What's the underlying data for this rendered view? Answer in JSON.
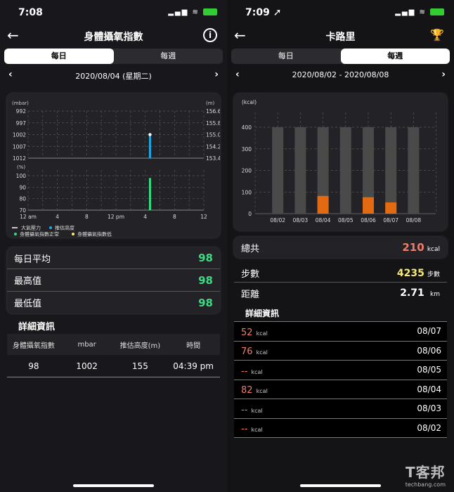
{
  "left": {
    "status_time": "7:08",
    "title": "身體攝氧指數",
    "tabs": [
      {
        "label": "每日",
        "active": true
      },
      {
        "label": "每週",
        "active": false
      }
    ],
    "date": "2020/08/04 (星期二)",
    "chart": {
      "pressure_unit": "(mbar)",
      "altitude_unit": "(m)",
      "spo2_unit": "(%)",
      "pressure_ticks": [
        "992",
        "997",
        "1002",
        "1007",
        "1012"
      ],
      "altitude_ticks": [
        "156.6",
        "155.8",
        "155.0",
        "154.2",
        "153.4"
      ],
      "spo2_ticks": [
        "100",
        "90",
        "80",
        "70"
      ],
      "x_ticks": [
        "12 am",
        "4",
        "8",
        "12 pm",
        "4",
        "8",
        "12"
      ],
      "legend": [
        "大氣壓力",
        "推估高度",
        "身體攝氧指數正常",
        "身體攝氧指數低"
      ],
      "colors": {
        "pressure": "#ffffff",
        "altitude": "#1ea7e8",
        "spo2_normal": "#2ee07f",
        "spo2_low": "#f3ef6b"
      },
      "points": [
        {
          "time_hours": 16.65,
          "pressure": 1002,
          "altitude": 155,
          "spo2": 98
        }
      ]
    },
    "stats": [
      {
        "label": "每日平均",
        "value": "98"
      },
      {
        "label": "最高值",
        "value": "98"
      },
      {
        "label": "最低值",
        "value": "98"
      }
    ],
    "detail_title": "詳細資訊",
    "table": {
      "headers": [
        "身體攝氧指數",
        "mbar",
        "推估高度(m)",
        "時間"
      ],
      "rows": [
        [
          "98",
          "1002",
          "155",
          "04:39 pm"
        ]
      ]
    }
  },
  "right": {
    "status_time": "7:09",
    "title": "卡路里",
    "tabs": [
      {
        "label": "每日",
        "active": false
      },
      {
        "label": "每週",
        "active": true
      }
    ],
    "date": "2020/08/02 - 2020/08/08",
    "chart_data": {
      "type": "bar",
      "ylabel": "(kcal)",
      "ylim": [
        0,
        400
      ],
      "yticks": [
        "0",
        "100",
        "200",
        "300",
        "400"
      ],
      "categories": [
        "08/02",
        "08/03",
        "08/04",
        "08/05",
        "08/06",
        "08/07",
        "08/08"
      ],
      "goal": 400,
      "values": [
        0,
        0,
        82,
        0,
        76,
        52,
        0
      ],
      "colors": {
        "goal": "#4a4a4a",
        "value": "#e46a12"
      },
      "grid": true
    },
    "total": {
      "label": "總共",
      "value": "210",
      "unit": "kcal"
    },
    "steps": {
      "label": "步數",
      "value": "4235",
      "unit": "步數"
    },
    "distance": {
      "label": "距離",
      "value": "2.71",
      "unit": "km"
    },
    "detail_title": "詳細資訊",
    "list": [
      {
        "value": "52",
        "unit": "kcal",
        "date": "08/07"
      },
      {
        "value": "76",
        "unit": "kcal",
        "date": "08/06"
      },
      {
        "value": "--",
        "unit": "kcal",
        "date": "08/05"
      },
      {
        "value": "82",
        "unit": "kcal",
        "date": "08/04"
      },
      {
        "value": "--",
        "unit": "kcal",
        "date": "08/03"
      },
      {
        "value": "--",
        "unit": "kcal",
        "date": "08/02"
      }
    ]
  },
  "watermark": {
    "logo": "T客邦",
    "site": "techbang.com"
  }
}
